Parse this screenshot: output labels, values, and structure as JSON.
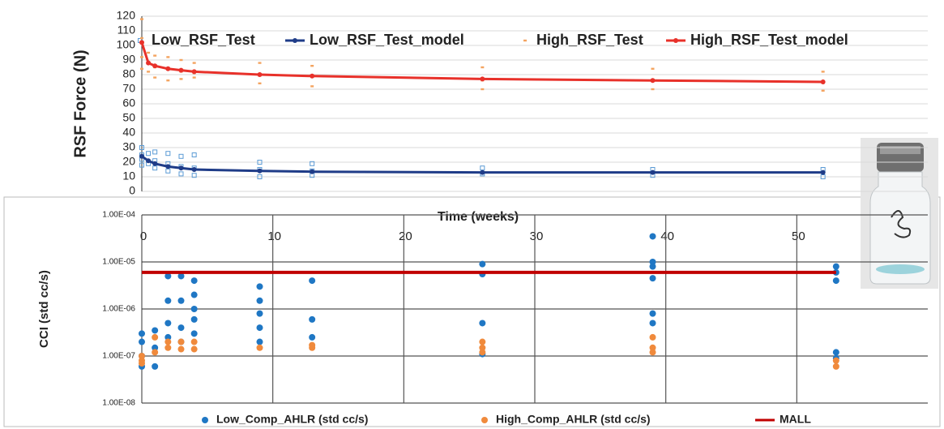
{
  "chart_data": [
    {
      "type": "line",
      "y_label": "RSF Force (N)",
      "x_label": "Time (weeks)",
      "xlim": [
        0,
        60
      ],
      "xticks": [
        0,
        10,
        20,
        30,
        40,
        50
      ],
      "ylim": [
        0,
        120
      ],
      "yticks": [
        0,
        10,
        20,
        30,
        40,
        50,
        60,
        70,
        80,
        90,
        100,
        110,
        120
      ],
      "grid": "y",
      "series": [
        {
          "name": "Low_RSF_Test",
          "type": "scatter",
          "marker": "square",
          "color": "#5b9bd5",
          "x": [
            0,
            0,
            0,
            0,
            0.5,
            0.5,
            1,
            1,
            1,
            2,
            2,
            2,
            3,
            3,
            3,
            4,
            4,
            4,
            9,
            9,
            9,
            13,
            13,
            13,
            26,
            26,
            39,
            39,
            52,
            52
          ],
          "values": [
            30,
            25,
            22,
            18,
            26,
            19,
            27,
            21,
            16,
            26,
            19,
            14,
            24,
            17,
            12,
            25,
            16,
            11,
            20,
            15,
            10,
            19,
            14,
            11,
            16,
            12,
            15,
            11,
            15,
            10
          ]
        },
        {
          "name": "Low_RSF_Test_model",
          "type": "line",
          "marker": "circle",
          "color": "#1f3c88",
          "x": [
            0,
            0.5,
            1,
            2,
            3,
            4,
            9,
            13,
            26,
            39,
            52
          ],
          "values": [
            24,
            21,
            19,
            17,
            16,
            15,
            14,
            13.5,
            13,
            13,
            13
          ]
        },
        {
          "name": "High_RSF_Test",
          "type": "scatter",
          "marker": "dash",
          "color": "#f4a460",
          "x": [
            0,
            0,
            0,
            0,
            0.5,
            0.5,
            1,
            1,
            1,
            2,
            2,
            2,
            3,
            3,
            3,
            4,
            4,
            4,
            9,
            9,
            9,
            13,
            13,
            13,
            26,
            26,
            26,
            39,
            39,
            39,
            52,
            52,
            52
          ],
          "values": [
            118,
            105,
            92,
            84,
            95,
            82,
            93,
            85,
            78,
            92,
            84,
            76,
            90,
            82,
            77,
            88,
            81,
            78,
            88,
            80,
            74,
            86,
            79,
            72,
            85,
            76,
            70,
            84,
            76,
            70,
            82,
            75,
            69
          ]
        },
        {
          "name": "High_RSF_Test_model",
          "type": "line",
          "marker": "circle",
          "color": "#e8312a",
          "x": [
            0,
            0.5,
            1,
            2,
            3,
            4,
            9,
            13,
            26,
            39,
            52
          ],
          "values": [
            102,
            88,
            86,
            84,
            83,
            82,
            80,
            79,
            77,
            76,
            75
          ]
        }
      ]
    },
    {
      "type": "scatter",
      "y_label": "CCI (std cc/s)",
      "log_y": true,
      "xlim": [
        0,
        60
      ],
      "xticks": [
        0,
        10,
        20,
        30,
        40,
        50
      ],
      "ylim": [
        1e-08,
        0.0001
      ],
      "yticks": [
        {
          "value": 1e-08,
          "label": "1.00E-08"
        },
        {
          "value": 1e-07,
          "label": "1.00E-07"
        },
        {
          "value": 1e-06,
          "label": "1.00E-06"
        },
        {
          "value": 1e-05,
          "label": "1.00E-05"
        },
        {
          "value": 0.0001,
          "label": "1.00E-04"
        }
      ],
      "grid": "both",
      "series": [
        {
          "name": "Low_Comp_AHLR (std cc/s)",
          "type": "scatter",
          "marker": "circle",
          "color": "#1f77c4",
          "x": [
            0,
            0,
            0,
            0,
            1,
            1,
            1,
            2,
            2,
            2,
            2,
            3,
            3,
            3,
            3,
            4,
            4,
            4,
            4,
            4,
            9,
            9,
            9,
            9,
            9,
            13,
            13,
            13,
            26,
            26,
            26,
            26,
            39,
            39,
            39,
            39,
            39,
            39,
            53,
            53,
            53,
            53,
            53
          ],
          "values": [
            3e-07,
            2e-07,
            1e-07,
            6e-08,
            3.5e-07,
            1.5e-07,
            6e-08,
            5e-06,
            1.5e-06,
            5e-07,
            2.5e-07,
            5e-06,
            1.5e-06,
            4e-07,
            2e-07,
            4e-06,
            2e-06,
            1e-06,
            6e-07,
            3e-07,
            3e-06,
            1.5e-06,
            8e-07,
            4e-07,
            2e-07,
            4e-06,
            6e-07,
            2.5e-07,
            9e-06,
            5.5e-06,
            5e-07,
            1.1e-07,
            3.5e-05,
            1e-05,
            8e-06,
            4.5e-06,
            8e-07,
            5e-07,
            8e-06,
            6e-06,
            4e-06,
            1.2e-07,
            9e-08
          ]
        },
        {
          "name": "High_Comp_AHLR (std cc/s)",
          "type": "scatter",
          "marker": "circle",
          "color": "#f08a3c",
          "x": [
            0,
            0,
            0,
            1,
            1,
            2,
            2,
            3,
            3,
            4,
            4,
            9,
            13,
            13,
            26,
            26,
            26,
            39,
            39,
            39,
            53,
            53
          ],
          "values": [
            1e-07,
            8e-08,
            7e-08,
            2.5e-07,
            1.2e-07,
            2e-07,
            1.5e-07,
            2e-07,
            1.4e-07,
            2e-07,
            1.4e-07,
            1.5e-07,
            1.7e-07,
            1.5e-07,
            2e-07,
            1.5e-07,
            1.2e-07,
            2.5e-07,
            1.5e-07,
            1.2e-07,
            8e-08,
            6e-08
          ]
        },
        {
          "name": "MALL",
          "type": "line",
          "marker": "none",
          "color": "#c00000",
          "x": [
            0,
            53
          ],
          "values": [
            6e-06,
            6e-06
          ]
        }
      ]
    }
  ]
}
